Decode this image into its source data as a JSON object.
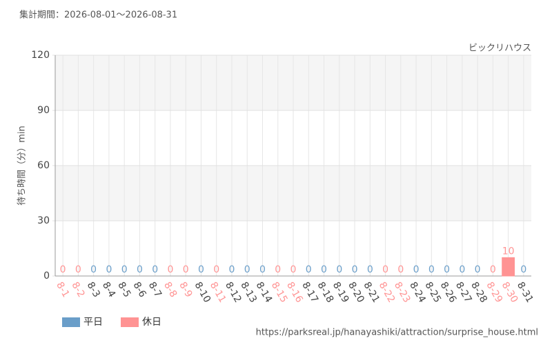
{
  "chart_data": {
    "type": "bar",
    "title": "集計期間：2026-08-01～2026-08-31",
    "subtitle": "ビックリハウス",
    "y_label": "待ち時間（分）min",
    "source": "https://parksreal.jp/hanayashiki/attraction/surprise_house.html",
    "categories": [
      "8-1",
      "8-2",
      "8-3",
      "8-4",
      "8-5",
      "8-6",
      "8-7",
      "8-8",
      "8-9",
      "8-10",
      "8-11",
      "8-12",
      "8-13",
      "8-14",
      "8-15",
      "8-16",
      "8-17",
      "8-18",
      "8-19",
      "8-20",
      "8-21",
      "8-22",
      "8-23",
      "8-24",
      "8-25",
      "8-26",
      "8-27",
      "8-28",
      "8-29",
      "8-30",
      "8-31"
    ],
    "series": [
      {
        "name": "平日",
        "color": "#6a9ec9",
        "values": [
          null,
          null,
          0,
          0,
          0,
          0,
          0,
          null,
          null,
          0,
          null,
          0,
          0,
          0,
          null,
          null,
          0,
          0,
          0,
          0,
          0,
          null,
          null,
          0,
          0,
          0,
          0,
          0,
          null,
          null,
          0
        ]
      },
      {
        "name": "休日",
        "color": "#ff9393",
        "values": [
          0,
          0,
          null,
          null,
          null,
          null,
          null,
          0,
          0,
          null,
          0,
          null,
          null,
          null,
          0,
          0,
          null,
          null,
          null,
          null,
          null,
          0,
          0,
          null,
          null,
          null,
          null,
          null,
          0,
          10,
          null
        ]
      }
    ],
    "ylim": [
      0,
      120
    ],
    "yticks": [
      0,
      30,
      60,
      90,
      120
    ],
    "grid": true,
    "legend": "bottom-left"
  }
}
